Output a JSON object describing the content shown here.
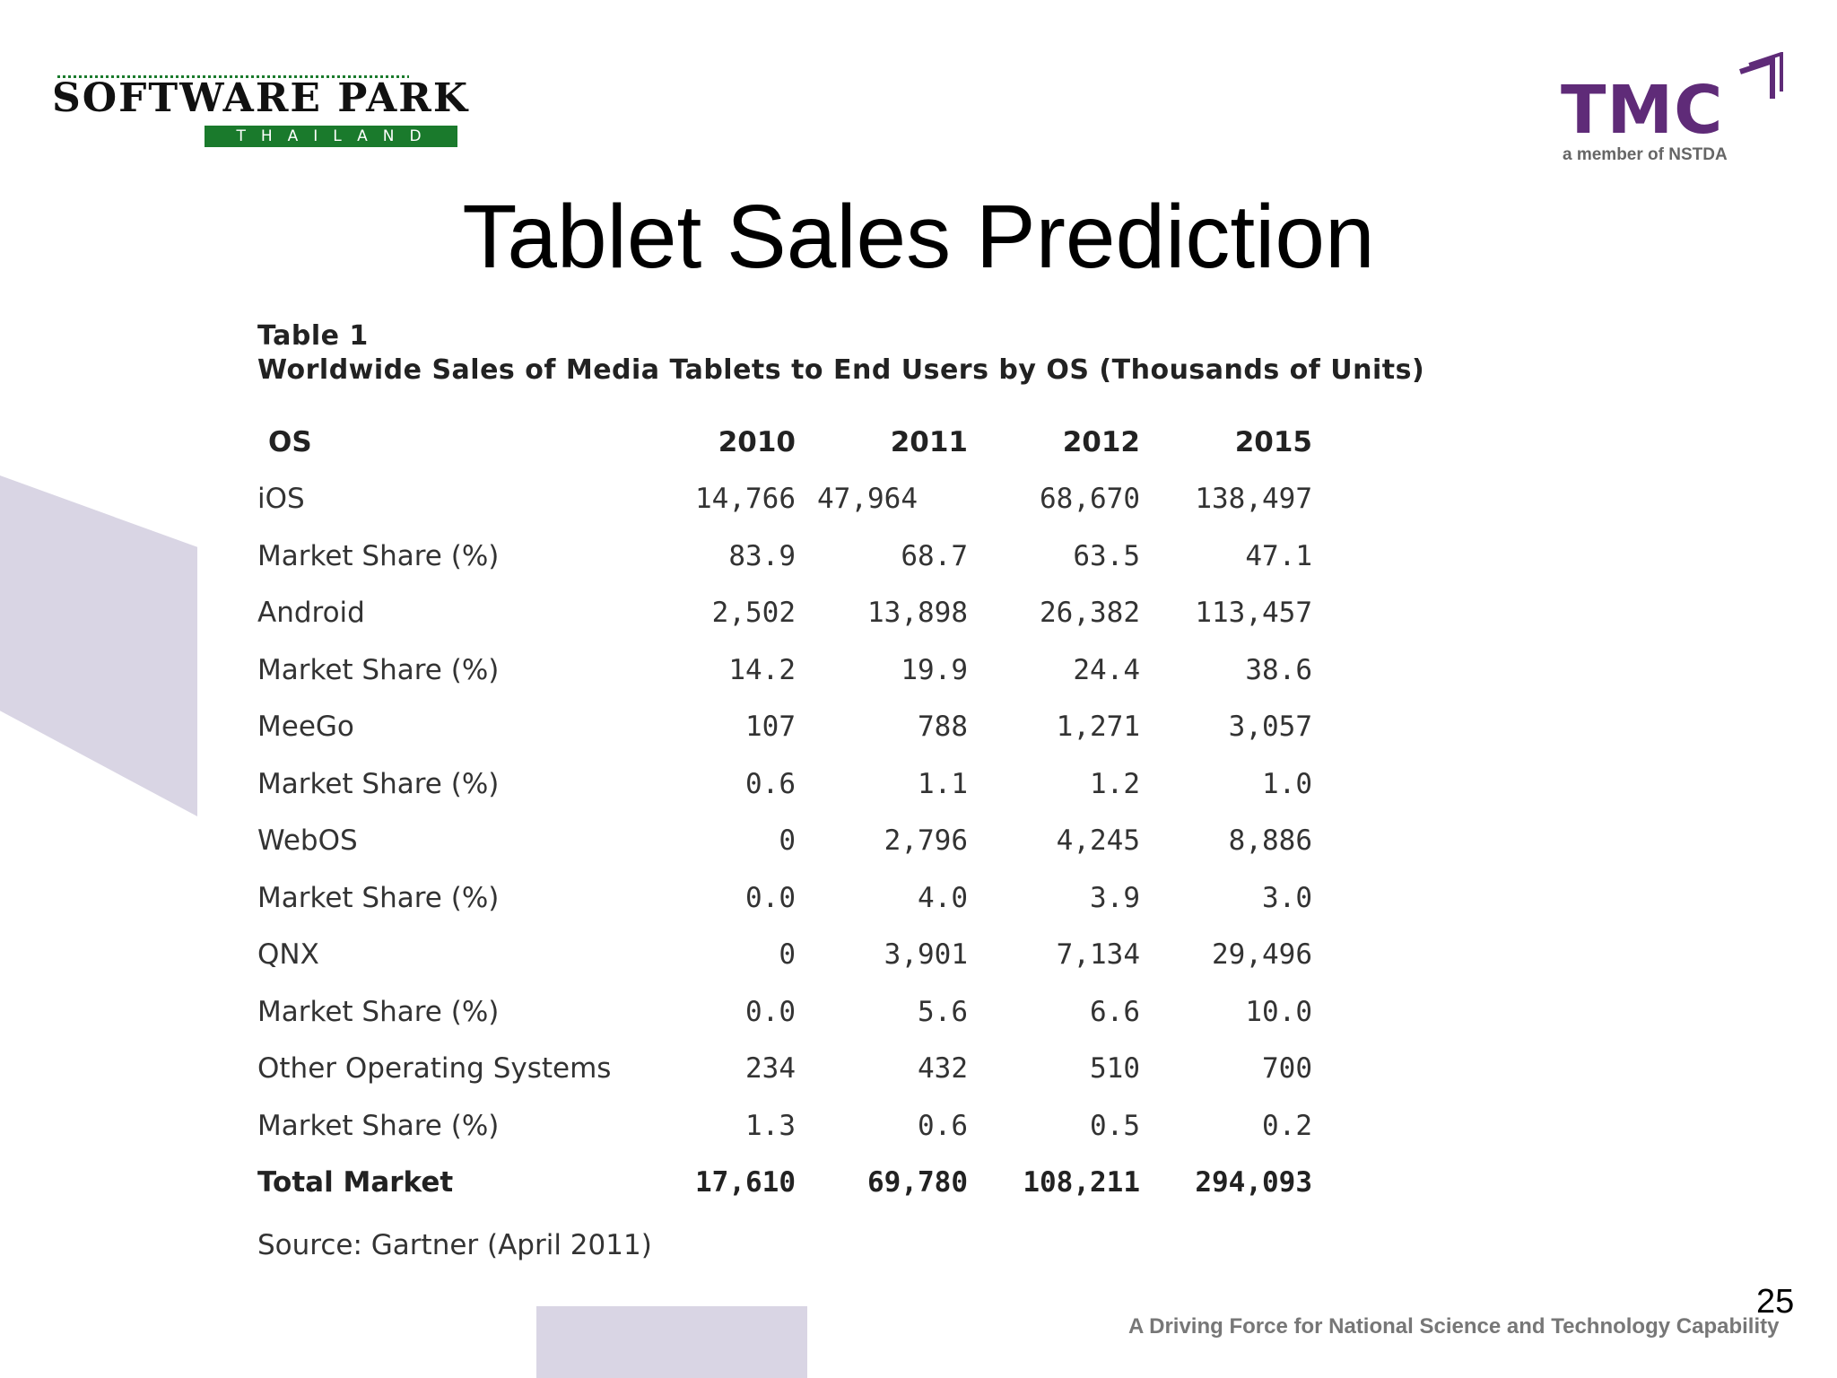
{
  "logos": {
    "left_top": "SOFTWARE PARK",
    "left_bottom": "THAILAND",
    "right_main": "TMC",
    "right_sub": "a member of NSTDA"
  },
  "title": "Tablet Sales Prediction",
  "table": {
    "caption_line1": "Table 1",
    "caption_line2": "Worldwide Sales of Media Tablets to End Users by OS (Thousands of Units)",
    "headers": [
      "OS",
      "2010",
      "2011",
      "2012",
      "2015"
    ],
    "rows": [
      [
        "iOS",
        "14,766",
        "47,964",
        "68,670",
        "138,497"
      ],
      [
        "Market Share (%)",
        "83.9",
        "68.7",
        "63.5",
        "47.1"
      ],
      [
        "Android",
        "2,502",
        "13,898",
        "26,382",
        "113,457"
      ],
      [
        "Market Share (%)",
        "14.2",
        "19.9",
        "24.4",
        "38.6"
      ],
      [
        "MeeGo",
        "107",
        "788",
        "1,271",
        "3,057"
      ],
      [
        "Market Share (%)",
        "0.6",
        "1.1",
        "1.2",
        "1.0"
      ],
      [
        "WebOS",
        "0",
        "2,796",
        "4,245",
        "8,886"
      ],
      [
        "Market Share (%)",
        "0.0",
        "4.0",
        "3.9",
        "3.0"
      ],
      [
        "QNX",
        "0",
        "3,901",
        "7,134",
        "29,496"
      ],
      [
        "Market Share (%)",
        "0.0",
        "5.6",
        "6.6",
        "10.0"
      ],
      [
        "Other Operating Systems",
        "234",
        "432",
        "510",
        "700"
      ],
      [
        "Market Share (%)",
        "1.3",
        "0.6",
        "0.5",
        "0.2"
      ]
    ],
    "total": [
      "Total Market",
      "17,610",
      "69,780",
      "108,211",
      "294,093"
    ],
    "source": "Source: Gartner (April 2011)"
  },
  "page_number": "25",
  "tagline": "A Driving Force for National Science and Technology Capability",
  "colors": {
    "decor": "#d9d5e4",
    "sp_green": "#1a7a2c",
    "tmc_purple": "#5f2b78"
  }
}
